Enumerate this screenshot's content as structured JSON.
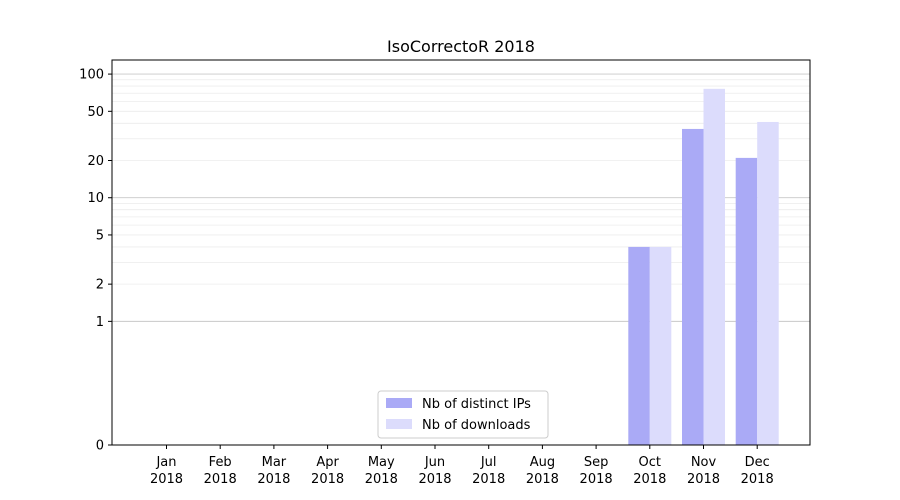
{
  "chart_data": {
    "type": "bar",
    "title": "IsoCorrectoR 2018",
    "xlabel": "",
    "ylabel": "",
    "yscale": "symlog",
    "ylim": [
      0,
      130
    ],
    "yticks": [
      0,
      1,
      2,
      5,
      10,
      20,
      50,
      100
    ],
    "ytick_labels": [
      "0",
      "1",
      "2",
      "5",
      "10",
      "20",
      "50",
      "100"
    ],
    "grid": "horizontal (major and minor)",
    "legend_position": "lower-center",
    "categories": [
      [
        "Jan",
        "2018"
      ],
      [
        "Feb",
        "2018"
      ],
      [
        "Mar",
        "2018"
      ],
      [
        "Apr",
        "2018"
      ],
      [
        "May",
        "2018"
      ],
      [
        "Jun",
        "2018"
      ],
      [
        "Jul",
        "2018"
      ],
      [
        "Aug",
        "2018"
      ],
      [
        "Sep",
        "2018"
      ],
      [
        "Oct",
        "2018"
      ],
      [
        "Nov",
        "2018"
      ],
      [
        "Dec",
        "2018"
      ]
    ],
    "series": [
      {
        "name": "Nb of distinct IPs",
        "color": "#aaaaf6",
        "values": [
          0,
          0,
          0,
          0,
          0,
          0,
          0,
          0,
          0,
          4,
          36,
          21
        ]
      },
      {
        "name": "Nb of downloads",
        "color": "#dcdcfc",
        "values": [
          0,
          0,
          0,
          0,
          0,
          0,
          0,
          0,
          0,
          4,
          76,
          41
        ]
      }
    ]
  }
}
